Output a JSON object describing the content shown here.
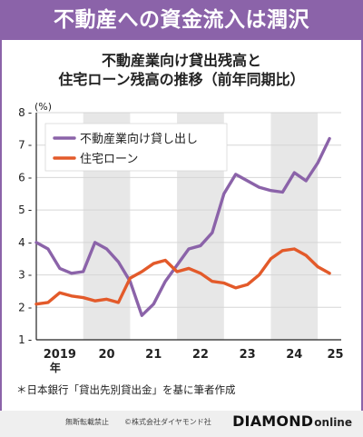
{
  "header": {
    "title": "不動産への資金流入は潤沢"
  },
  "chart_title": {
    "line1": "不動産業向け貸出残高と",
    "line2": "住宅ローン残高の推移（前年同期比）"
  },
  "source_note": "＊日本銀行「貸出先別貸出金」を基に筆者作成",
  "footer": {
    "notice": "無断転載禁止",
    "copyright": "©株式会社ダイヤモンド社",
    "brand_main": "DIAMOND",
    "brand_sub": "online"
  },
  "colors": {
    "header_bg": "#8b63a9",
    "series_real_estate": "#8b63a9",
    "series_housing": "#e35a2a",
    "band": "#e7e7e7"
  },
  "chart_data": {
    "type": "line",
    "ylabel": "(%)",
    "ylim": [
      1,
      8
    ],
    "xlim": [
      0,
      26
    ],
    "legend_position": "top-left",
    "x_ticks": [
      {
        "value": 2,
        "label": "2019",
        "sub": "年"
      },
      {
        "value": 6,
        "label": "20",
        "sub": ""
      },
      {
        "value": 10,
        "label": "21",
        "sub": ""
      },
      {
        "value": 14,
        "label": "22",
        "sub": ""
      },
      {
        "value": 18,
        "label": "23",
        "sub": ""
      },
      {
        "value": 22,
        "label": "24",
        "sub": ""
      },
      {
        "value": 25.5,
        "label": "25",
        "sub": ""
      }
    ],
    "y_ticks": [
      1,
      2,
      3,
      4,
      5,
      6,
      7,
      8
    ],
    "series": [
      {
        "name": "不動産業向け貸し出し",
        "color": "#8b63a9",
        "x": [
          0,
          1,
          2,
          3,
          4,
          5,
          6,
          7,
          8,
          9,
          10,
          11,
          12,
          13,
          14,
          15,
          16,
          17,
          18,
          19,
          20,
          21,
          22,
          23,
          24,
          25
        ],
        "values": [
          4.0,
          3.8,
          3.2,
          3.05,
          3.1,
          4.0,
          3.8,
          3.4,
          2.8,
          1.75,
          2.1,
          2.8,
          3.3,
          3.8,
          3.9,
          4.3,
          5.5,
          6.1,
          5.9,
          5.7,
          5.6,
          5.55,
          6.15,
          5.9,
          6.45,
          7.2
        ]
      },
      {
        "name": "住宅ローン",
        "color": "#e35a2a",
        "x": [
          0,
          1,
          2,
          3,
          4,
          5,
          6,
          7,
          8,
          9,
          10,
          11,
          12,
          13,
          14,
          15,
          16,
          17,
          18,
          19,
          20,
          21,
          22,
          23,
          24,
          25
        ],
        "values": [
          2.1,
          2.15,
          2.45,
          2.35,
          2.3,
          2.2,
          2.25,
          2.15,
          2.9,
          3.1,
          3.35,
          3.45,
          3.1,
          3.2,
          3.05,
          2.8,
          2.75,
          2.6,
          2.7,
          3.0,
          3.5,
          3.75,
          3.8,
          3.6,
          3.25,
          3.05
        ]
      }
    ]
  }
}
